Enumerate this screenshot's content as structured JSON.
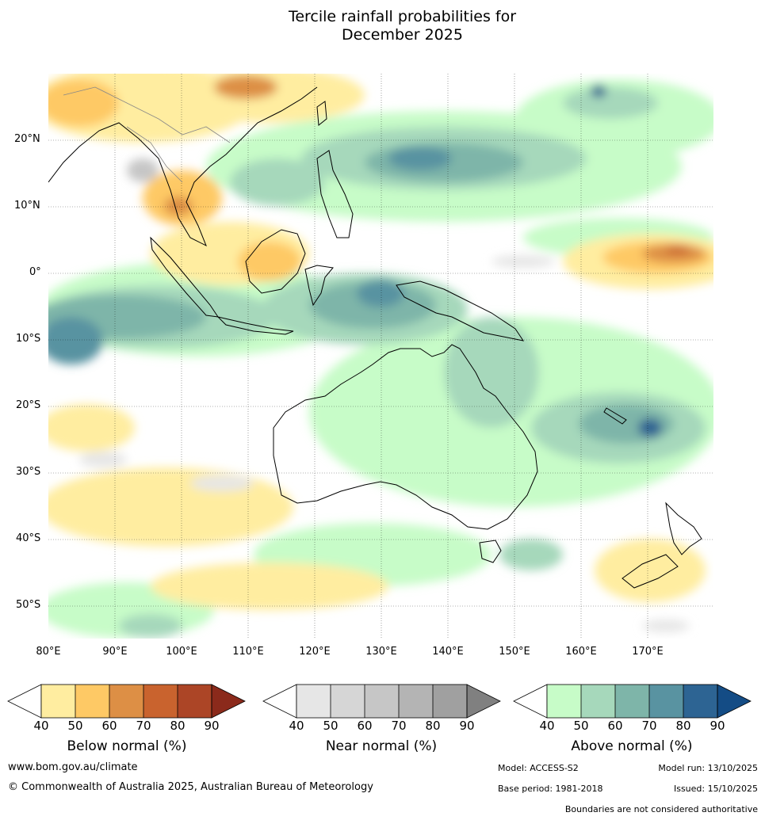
{
  "title_line1": "Tercile rainfall probabilities for",
  "title_line2": "December 2025",
  "latitudes": [
    "20°N",
    "10°N",
    "0°",
    "10°S",
    "20°S",
    "30°S",
    "40°S",
    "50°S"
  ],
  "longitudes": [
    "80°E",
    "90°E",
    "100°E",
    "110°E",
    "120°E",
    "130°E",
    "140°E",
    "150°E",
    "160°E",
    "170°E"
  ],
  "colorbars": {
    "below": {
      "label": "Below normal (%)",
      "ticks": [
        "40",
        "50",
        "60",
        "70",
        "80",
        "90"
      ],
      "colors": [
        "#ffffff",
        "#ffeda0",
        "#fec965",
        "#dd8f45",
        "#c9632e",
        "#ac4526",
        "#8b2a1b"
      ]
    },
    "near": {
      "label": "Near normal (%)",
      "ticks": [
        "40",
        "50",
        "60",
        "70",
        "80",
        "90"
      ],
      "colors": [
        "#ffffff",
        "#e6e6e6",
        "#d6d6d6",
        "#c6c6c6",
        "#b4b4b4",
        "#a0a0a0",
        "#808080"
      ]
    },
    "above": {
      "label": "Above normal (%)",
      "ticks": [
        "40",
        "50",
        "60",
        "70",
        "80",
        "90"
      ],
      "colors": [
        "#ffffff",
        "#c7fcc8",
        "#a6d8bb",
        "#7eb5a9",
        "#5993a1",
        "#2d6493",
        "#144c85"
      ]
    }
  },
  "footer": {
    "website": "www.bom.gov.au/climate",
    "copyright": "© Commonwealth of Australia 2025, Australian Bureau of Meteorology",
    "model": "Model: ACCESS-S2",
    "model_run": "Model run: 13/10/2025",
    "base_period": "Base period: 1981-2018",
    "issued": "Issued: 15/10/2025",
    "disclaimer": "Boundaries are not considered authoritative"
  }
}
